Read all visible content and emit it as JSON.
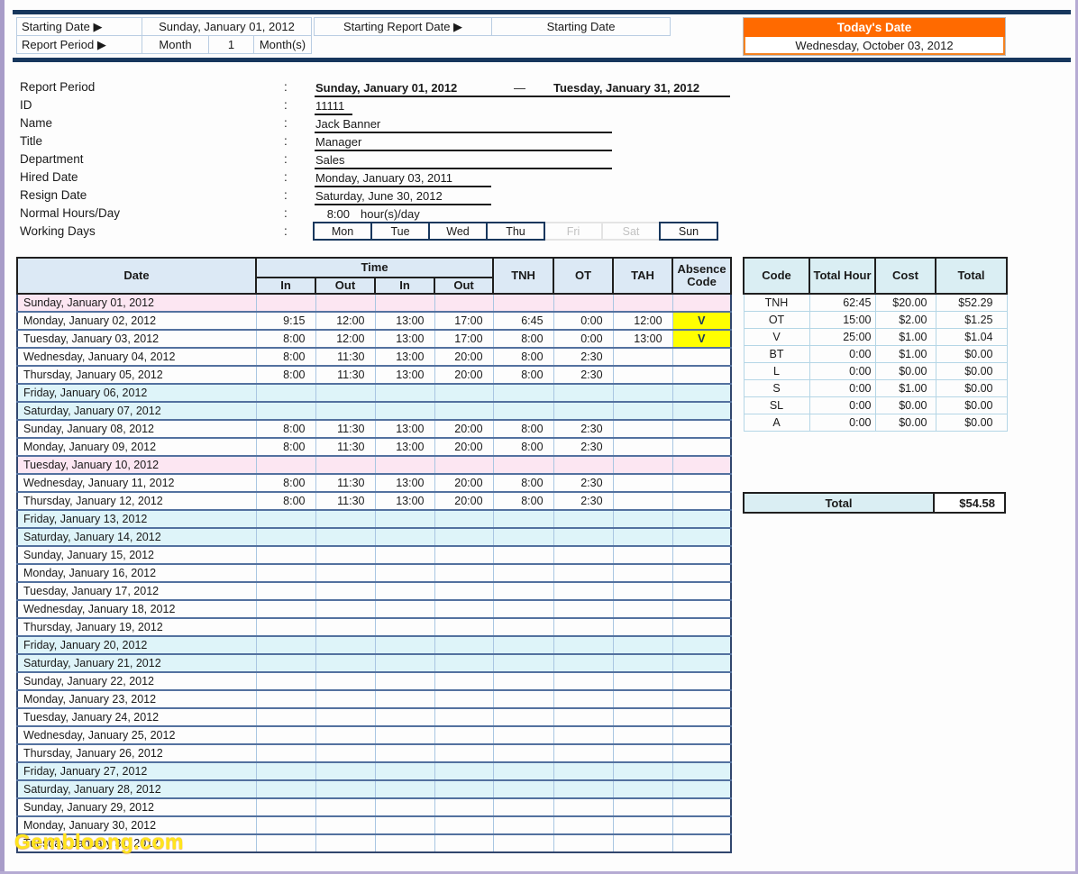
{
  "topbar": {
    "starting_date_label": "Starting Date ▶",
    "starting_date_value": "Sunday, January 01, 2012",
    "report_period_label": "Report Period ▶",
    "report_period_unit": "Month",
    "report_period_count": "1",
    "report_period_suffix": "Month(s)",
    "starting_report_date_label": "Starting Report Date ▶",
    "starting_report_date_value": "Starting Date",
    "todays_date_label": "Today's Date",
    "todays_date_value": "Wednesday, October 03, 2012"
  },
  "info": {
    "colon": ":",
    "report_period": {
      "label": "Report Period",
      "start": "Sunday, January 01, 2012",
      "dash": "—",
      "end": "Tuesday, January 31, 2012"
    },
    "id": {
      "label": "ID",
      "value": "11111"
    },
    "name": {
      "label": "Name",
      "value": "Jack Banner"
    },
    "title": {
      "label": "Title",
      "value": "Manager"
    },
    "department": {
      "label": "Department",
      "value": "Sales"
    },
    "hired_date": {
      "label": "Hired Date",
      "value": "Monday, January 03, 2011"
    },
    "resign_date": {
      "label": "Resign Date",
      "value": "Saturday, June 30, 2012"
    },
    "normal_hours": {
      "label": "Normal Hours/Day",
      "value": "8:00",
      "suffix": "hour(s)/day"
    },
    "working_days": {
      "label": "Working Days",
      "days": [
        {
          "label": "Mon",
          "active": true
        },
        {
          "label": "Tue",
          "active": true
        },
        {
          "label": "Wed",
          "active": true
        },
        {
          "label": "Thu",
          "active": true
        },
        {
          "label": "Fri",
          "active": false
        },
        {
          "label": "Sat",
          "active": false
        },
        {
          "label": "Sun",
          "active": true
        }
      ]
    }
  },
  "timesheet": {
    "headers": {
      "date": "Date",
      "time": "Time",
      "in1": "In",
      "out1": "Out",
      "in2": "In",
      "out2": "Out",
      "tnh": "TNH",
      "ot": "OT",
      "tah": "TAH",
      "absence": "Absence Code"
    },
    "rows": [
      {
        "date": "Sunday, January 01, 2012",
        "type": "holiday",
        "cells": [
          "",
          "",
          "",
          "",
          "",
          "",
          ""
        ],
        "absence": ""
      },
      {
        "date": "Monday, January 02, 2012",
        "type": "normal",
        "cells": [
          "9:15",
          "12:00",
          "13:00",
          "17:00",
          "6:45",
          "0:00",
          "12:00"
        ],
        "absence": "V"
      },
      {
        "date": "Tuesday, January 03, 2012",
        "type": "normal",
        "cells": [
          "8:00",
          "12:00",
          "13:00",
          "17:00",
          "8:00",
          "0:00",
          "13:00"
        ],
        "absence": "V"
      },
      {
        "date": "Wednesday, January 04, 2012",
        "type": "normal",
        "cells": [
          "8:00",
          "11:30",
          "13:00",
          "20:00",
          "8:00",
          "2:30",
          ""
        ],
        "absence": ""
      },
      {
        "date": "Thursday, January 05, 2012",
        "type": "normal",
        "cells": [
          "8:00",
          "11:30",
          "13:00",
          "20:00",
          "8:00",
          "2:30",
          ""
        ],
        "absence": ""
      },
      {
        "date": "Friday, January 06, 2012",
        "type": "weekend",
        "cells": [
          "",
          "",
          "",
          "",
          "",
          "",
          ""
        ],
        "absence": ""
      },
      {
        "date": "Saturday, January 07, 2012",
        "type": "weekend",
        "cells": [
          "",
          "",
          "",
          "",
          "",
          "",
          ""
        ],
        "absence": ""
      },
      {
        "date": "Sunday, January 08, 2012",
        "type": "normal",
        "cells": [
          "8:00",
          "11:30",
          "13:00",
          "20:00",
          "8:00",
          "2:30",
          ""
        ],
        "absence": ""
      },
      {
        "date": "Monday, January 09, 2012",
        "type": "normal",
        "cells": [
          "8:00",
          "11:30",
          "13:00",
          "20:00",
          "8:00",
          "2:30",
          ""
        ],
        "absence": ""
      },
      {
        "date": "Tuesday, January 10, 2012",
        "type": "holiday",
        "cells": [
          "",
          "",
          "",
          "",
          "",
          "",
          ""
        ],
        "absence": ""
      },
      {
        "date": "Wednesday, January 11, 2012",
        "type": "normal",
        "cells": [
          "8:00",
          "11:30",
          "13:00",
          "20:00",
          "8:00",
          "2:30",
          ""
        ],
        "absence": ""
      },
      {
        "date": "Thursday, January 12, 2012",
        "type": "normal",
        "cells": [
          "8:00",
          "11:30",
          "13:00",
          "20:00",
          "8:00",
          "2:30",
          ""
        ],
        "absence": ""
      },
      {
        "date": "Friday, January 13, 2012",
        "type": "weekend",
        "cells": [
          "",
          "",
          "",
          "",
          "",
          "",
          ""
        ],
        "absence": ""
      },
      {
        "date": "Saturday, January 14, 2012",
        "type": "weekend",
        "cells": [
          "",
          "",
          "",
          "",
          "",
          "",
          ""
        ],
        "absence": ""
      },
      {
        "date": "Sunday, January 15, 2012",
        "type": "normal",
        "cells": [
          "",
          "",
          "",
          "",
          "",
          "",
          ""
        ],
        "absence": ""
      },
      {
        "date": "Monday, January 16, 2012",
        "type": "normal",
        "cells": [
          "",
          "",
          "",
          "",
          "",
          "",
          ""
        ],
        "absence": ""
      },
      {
        "date": "Tuesday, January 17, 2012",
        "type": "normal",
        "cells": [
          "",
          "",
          "",
          "",
          "",
          "",
          ""
        ],
        "absence": ""
      },
      {
        "date": "Wednesday, January 18, 2012",
        "type": "normal",
        "cells": [
          "",
          "",
          "",
          "",
          "",
          "",
          ""
        ],
        "absence": ""
      },
      {
        "date": "Thursday, January 19, 2012",
        "type": "normal",
        "cells": [
          "",
          "",
          "",
          "",
          "",
          "",
          ""
        ],
        "absence": ""
      },
      {
        "date": "Friday, January 20, 2012",
        "type": "weekend",
        "cells": [
          "",
          "",
          "",
          "",
          "",
          "",
          ""
        ],
        "absence": ""
      },
      {
        "date": "Saturday, January 21, 2012",
        "type": "weekend",
        "cells": [
          "",
          "",
          "",
          "",
          "",
          "",
          ""
        ],
        "absence": ""
      },
      {
        "date": "Sunday, January 22, 2012",
        "type": "normal",
        "cells": [
          "",
          "",
          "",
          "",
          "",
          "",
          ""
        ],
        "absence": ""
      },
      {
        "date": "Monday, January 23, 2012",
        "type": "normal",
        "cells": [
          "",
          "",
          "",
          "",
          "",
          "",
          ""
        ],
        "absence": ""
      },
      {
        "date": "Tuesday, January 24, 2012",
        "type": "normal",
        "cells": [
          "",
          "",
          "",
          "",
          "",
          "",
          ""
        ],
        "absence": ""
      },
      {
        "date": "Wednesday, January 25, 2012",
        "type": "normal",
        "cells": [
          "",
          "",
          "",
          "",
          "",
          "",
          ""
        ],
        "absence": ""
      },
      {
        "date": "Thursday, January 26, 2012",
        "type": "normal",
        "cells": [
          "",
          "",
          "",
          "",
          "",
          "",
          ""
        ],
        "absence": ""
      },
      {
        "date": "Friday, January 27, 2012",
        "type": "weekend",
        "cells": [
          "",
          "",
          "",
          "",
          "",
          "",
          ""
        ],
        "absence": ""
      },
      {
        "date": "Saturday, January 28, 2012",
        "type": "weekend",
        "cells": [
          "",
          "",
          "",
          "",
          "",
          "",
          ""
        ],
        "absence": ""
      },
      {
        "date": "Sunday, January 29, 2012",
        "type": "normal",
        "cells": [
          "",
          "",
          "",
          "",
          "",
          "",
          ""
        ],
        "absence": ""
      },
      {
        "date": "Monday, January 30, 2012",
        "type": "normal",
        "cells": [
          "",
          "",
          "",
          "",
          "",
          "",
          ""
        ],
        "absence": ""
      },
      {
        "date": "Tuesday, January 31, 2012",
        "type": "normal",
        "cells": [
          "",
          "",
          "",
          "",
          "",
          "",
          ""
        ],
        "absence": ""
      }
    ]
  },
  "summary": {
    "headers": {
      "code": "Code",
      "total_hour": "Total Hour",
      "cost": "Cost",
      "total": "Total"
    },
    "rows": [
      {
        "code": "TNH",
        "total_hour": "62:45",
        "cost": "$20.00",
        "total": "$52.29"
      },
      {
        "code": "OT",
        "total_hour": "15:00",
        "cost": "$2.00",
        "total": "$1.25"
      },
      {
        "code": "V",
        "total_hour": "25:00",
        "cost": "$1.00",
        "total": "$1.04"
      },
      {
        "code": "BT",
        "total_hour": "0:00",
        "cost": "$1.00",
        "total": "$0.00"
      },
      {
        "code": "L",
        "total_hour": "0:00",
        "cost": "$0.00",
        "total": "$0.00"
      },
      {
        "code": "S",
        "total_hour": "0:00",
        "cost": "$1.00",
        "total": "$0.00"
      },
      {
        "code": "SL",
        "total_hour": "0:00",
        "cost": "$0.00",
        "total": "$0.00"
      },
      {
        "code": "A",
        "total_hour": "0:00",
        "cost": "$0.00",
        "total": "$0.00"
      }
    ],
    "total_label": "Total",
    "total_value": "$54.58"
  },
  "watermark": "Gembloong.com",
  "colors": {
    "accent_orange": "#ff6a00",
    "holiday_pink": "#fce6f2",
    "weekend_cyan": "#def4f9",
    "absence_yellow": "#ffff00",
    "band_navy": "#17375d",
    "header_blue": "#dce9f5",
    "summary_header_blue": "#daeef3",
    "watermark_yellow": "#ffe51c",
    "frame_purple": "#a89cc8"
  }
}
